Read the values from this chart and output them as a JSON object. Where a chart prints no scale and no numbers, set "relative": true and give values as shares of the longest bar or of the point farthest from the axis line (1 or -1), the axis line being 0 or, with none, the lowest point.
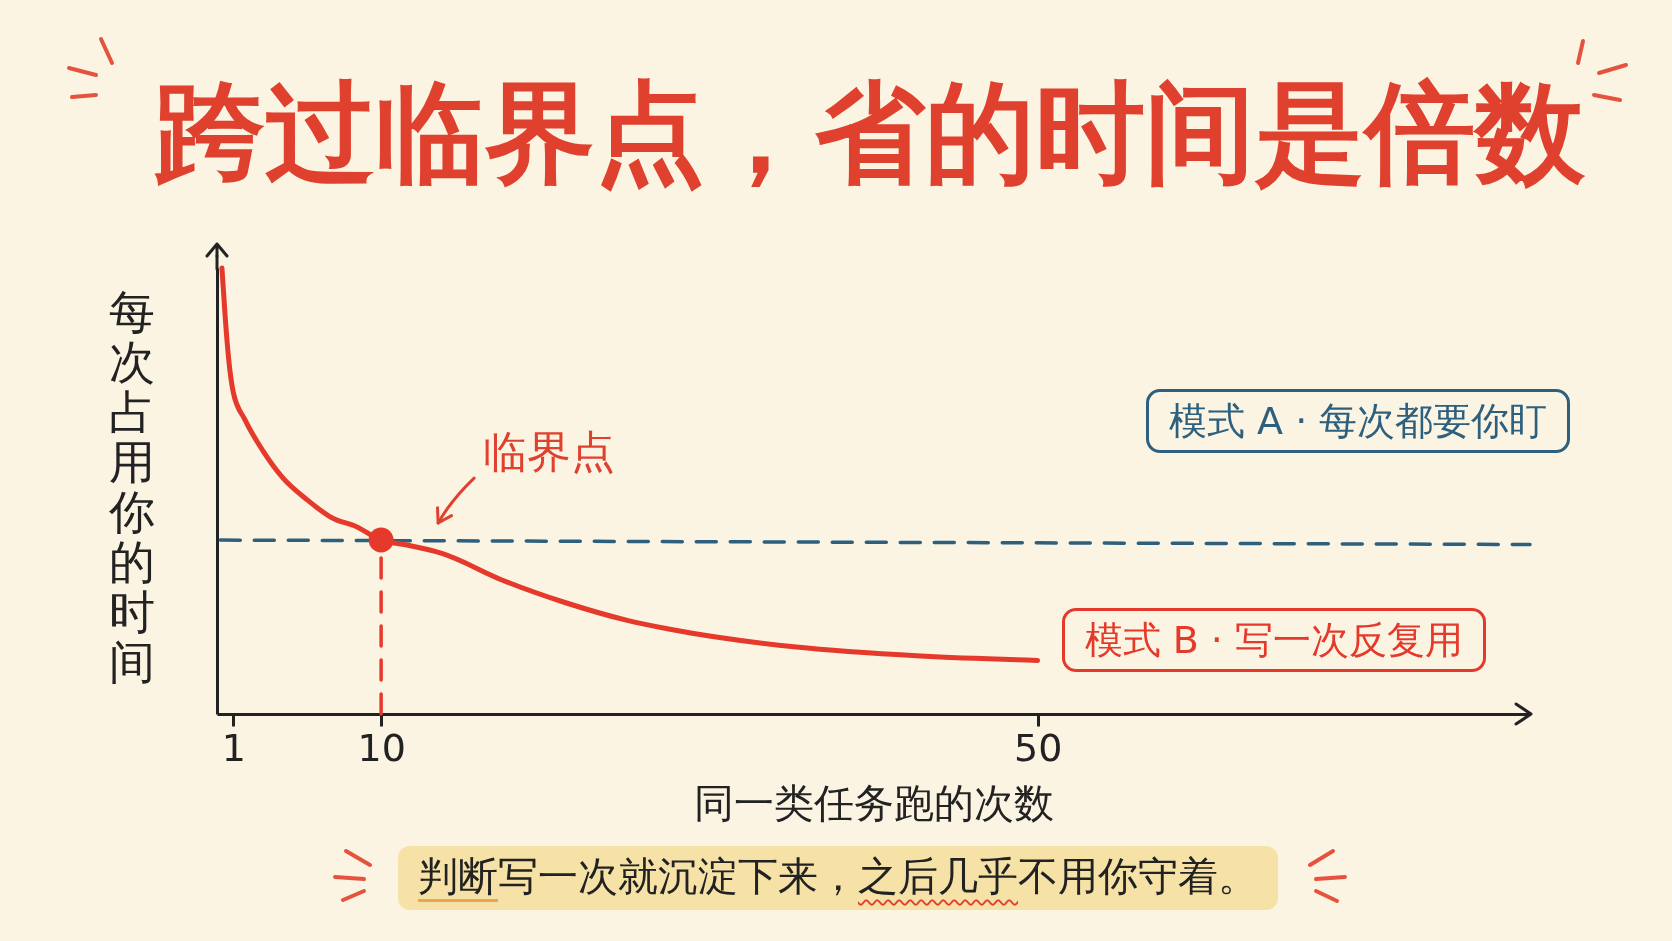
{
  "chart_data": {
    "type": "line",
    "title": "跨过临界点，省的时间是倍数",
    "xlabel": "同一类任务跑的次数",
    "ylabel": "每次占用你的时间",
    "relative": true,
    "xlim": [
      0,
      80
    ],
    "xticks": [
      1,
      10,
      50
    ],
    "series": [
      {
        "name": "模式 A · 每次都要你盯",
        "color": "#2d5f7f",
        "line_style": "dashed",
        "x": [
          0.2,
          80
        ],
        "values": [
          0.39,
          0.38
        ]
      },
      {
        "name": "模式 B · 写一次反复用",
        "color": "#e5392b",
        "x": [
          0.3,
          0.5,
          0.7,
          1,
          1.7,
          2.8,
          4,
          5.5,
          7,
          8.5,
          10,
          11.4,
          13.7,
          17.4,
          21.2,
          25,
          27.6,
          35.3,
          42.9,
          50
        ],
        "values": [
          1,
          0.89,
          0.8,
          0.72,
          0.66,
          0.59,
          0.53,
          0.48,
          0.44,
          0.42,
          0.39,
          0.38,
          0.36,
          0.3,
          0.25,
          0.21,
          0.19,
          0.15,
          0.13,
          0.12
        ]
      },
      {
        "type": "line",
        "color": "#e5392b",
        "line_style": "dashed",
        "x": [
          10,
          10
        ],
        "values": [
          0,
          0.39
        ]
      },
      {
        "type": "scatter",
        "color": "#e5392b",
        "marker": "circle",
        "x": [
          10
        ],
        "values": [
          0.39
        ]
      }
    ],
    "annotations": [
      {
        "text": "临界点",
        "x": 10,
        "y": 0.39
      },
      "判断写一次就沉淀下来，之后几乎不用你守着。"
    ]
  }
}
